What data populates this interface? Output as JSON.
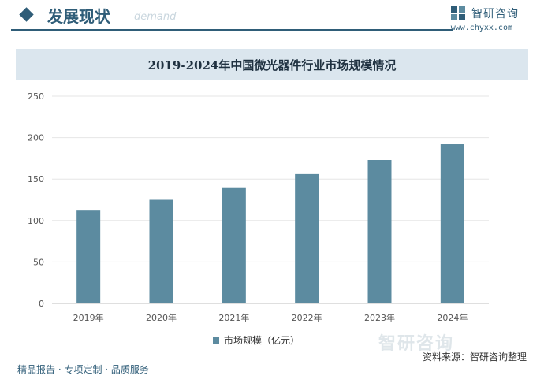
{
  "header": {
    "section_title": "发展现状",
    "section_subtitle": "demand",
    "brand_name": "智研咨询",
    "brand_url": "www.chyxx.com"
  },
  "chart_data": {
    "type": "bar",
    "title": "2019-2024年中国微光器件行业市场规模情况",
    "categories": [
      "2019年",
      "2020年",
      "2021年",
      "2022年",
      "2023年",
      "2024年"
    ],
    "series": [
      {
        "name": "市场规模（亿元）",
        "values": [
          112,
          125,
          140,
          156,
          173,
          192
        ]
      }
    ],
    "ylim": [
      0,
      250
    ],
    "yticks": [
      0,
      50,
      100,
      150,
      200,
      250
    ],
    "xlabel": "",
    "ylabel": "",
    "grid": true,
    "bar_color": "#5c8ba0",
    "legend_position": "bottom"
  },
  "footer": {
    "left": "精品报告 · 专项定制 · 品质服务",
    "source": "资料来源：智研咨询整理",
    "watermark": "智研咨询"
  }
}
